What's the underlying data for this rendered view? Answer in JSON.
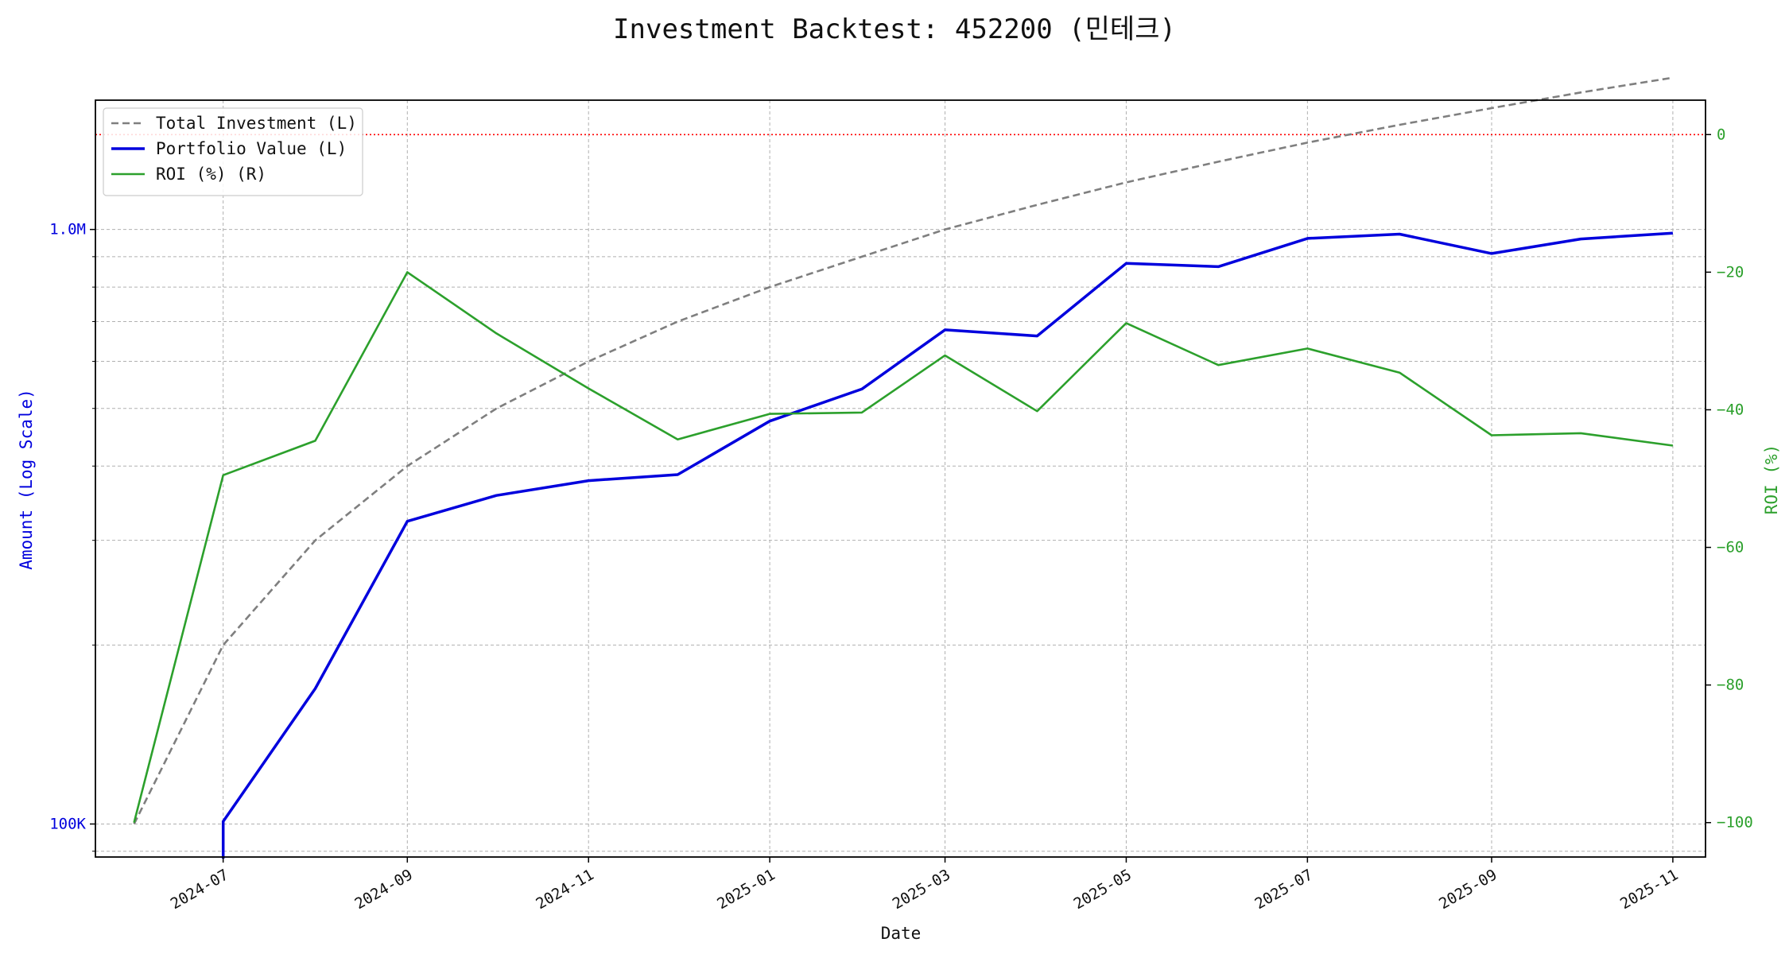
{
  "chart_data": {
    "type": "line",
    "title": "Investment Backtest: 452200 (민테크)",
    "xlabel": "Date",
    "ylabel_left": "Amount (Log Scale)",
    "ylabel_right": "ROI (%)",
    "left_scale": "log",
    "left_ylim": [
      88000,
      1650000
    ],
    "right_ylim": [
      -105,
      5
    ],
    "x_range": [
      "2024-05-19",
      "2025-11-12"
    ],
    "x_ticks": [
      "2024-07-01",
      "2024-09-01",
      "2024-11-01",
      "2025-01-01",
      "2025-03-01",
      "2025-05-01",
      "2025-07-01",
      "2025-09-01",
      "2025-11-01"
    ],
    "x_tick_labels": [
      "2024-07",
      "2024-09",
      "2024-11",
      "2025-01",
      "2025-03",
      "2025-05",
      "2025-07",
      "2025-09",
      "2025-11"
    ],
    "left_ticks": [
      100000,
      1000000
    ],
    "left_tick_labels": [
      "100K",
      "1.0M"
    ],
    "right_ticks": [
      0,
      -20,
      -40,
      -60,
      -80,
      -100
    ],
    "right_tick_labels": [
      "0",
      "−20",
      "−40",
      "−60",
      "−80",
      "−100"
    ],
    "grid": true,
    "legend_position": "top-left",
    "reference_line": {
      "axis": "right",
      "value": 0,
      "color": "#ff0000"
    },
    "series": [
      {
        "name": "Total Investment (L)",
        "axis": "left",
        "style": "dashed",
        "color": "#7f7f7f",
        "x": [
          "2024-06-01",
          "2024-07-01",
          "2024-08-01",
          "2024-09-01",
          "2024-10-01",
          "2024-11-01",
          "2024-12-01",
          "2025-01-01",
          "2025-02-01",
          "2025-03-01",
          "2025-04-01",
          "2025-05-01",
          "2025-06-01",
          "2025-07-01",
          "2025-08-01",
          "2025-09-01",
          "2025-10-01",
          "2025-11-01"
        ],
        "values": [
          100000,
          200000,
          300000,
          400000,
          500000,
          600000,
          700000,
          800000,
          900000,
          1000000,
          1100000,
          1200000,
          1300000,
          1400000,
          1500000,
          1600000,
          1700000,
          1800000
        ]
      },
      {
        "name": "Portfolio Value (L)",
        "axis": "left",
        "style": "solid",
        "color": "#0000dd",
        "x": [
          "2024-07-01",
          "2024-08-01",
          "2024-09-01",
          "2024-10-01",
          "2024-11-01",
          "2024-12-01",
          "2025-01-01",
          "2025-02-01",
          "2025-03-01",
          "2025-04-01",
          "2025-05-01",
          "2025-06-01",
          "2025-07-01",
          "2025-08-01",
          "2025-09-01",
          "2025-10-01",
          "2025-11-01"
        ],
        "values": [
          101000,
          169000,
          323000,
          357000,
          378000,
          387000,
          476000,
          539000,
          678000,
          662000,
          877000,
          866000,
          966000,
          982000,
          911000,
          964000,
          986000
        ]
      },
      {
        "name": "ROI (%) (R)",
        "axis": "right",
        "style": "solid",
        "color": "#2ca02c",
        "x": [
          "2024-06-01",
          "2024-07-01",
          "2024-08-01",
          "2024-09-01",
          "2024-10-01",
          "2024-11-01",
          "2024-12-01",
          "2025-01-01",
          "2025-02-01",
          "2025-03-01",
          "2025-04-01",
          "2025-05-01",
          "2025-06-01",
          "2025-07-01",
          "2025-08-01",
          "2025-09-01",
          "2025-10-01",
          "2025-11-01"
        ],
        "values": [
          -100,
          -49.5,
          -44.5,
          -20,
          -28.9,
          -36.9,
          -44.3,
          -40.6,
          -40.4,
          -32.1,
          -40.2,
          -27.4,
          -33.5,
          -31.1,
          -34.6,
          -43.7,
          -43.4,
          -45.2
        ]
      }
    ]
  }
}
